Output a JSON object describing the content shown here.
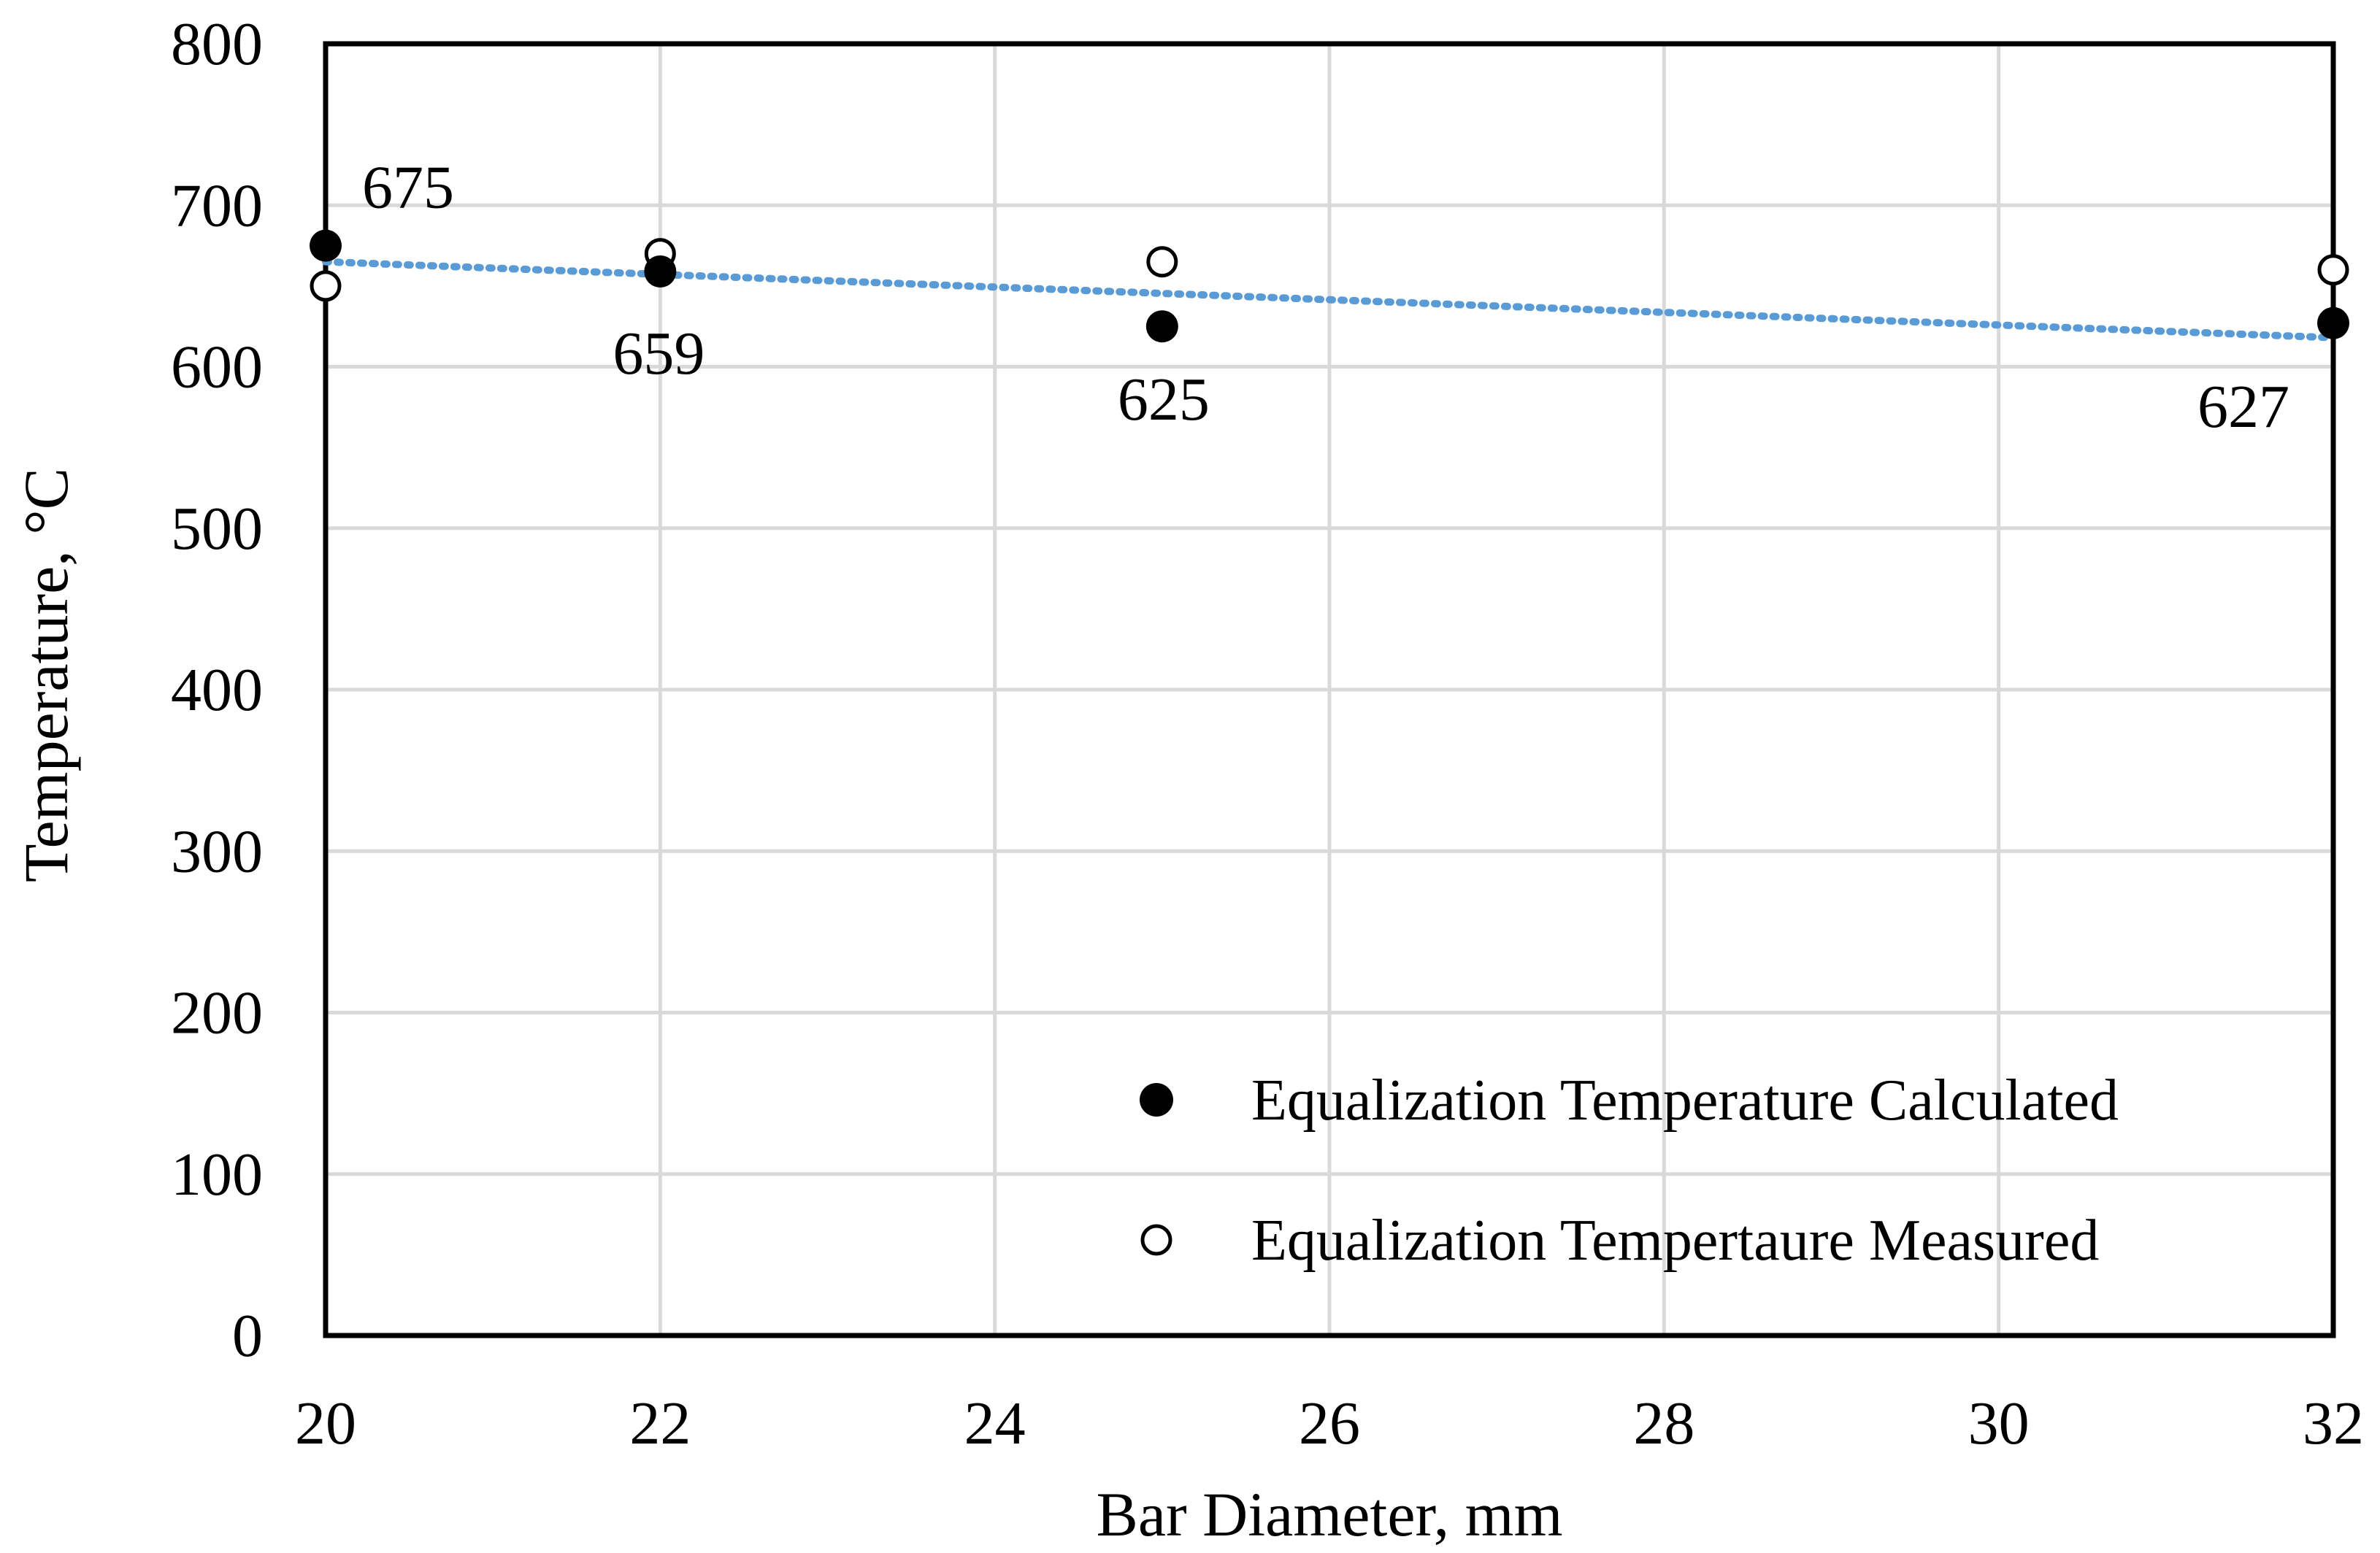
{
  "chart_data": {
    "type": "scatter",
    "title": "",
    "xlabel": "Bar Diameter, mm",
    "ylabel": "Temperature, °C",
    "xlim": [
      20,
      32
    ],
    "ylim": [
      0,
      800
    ],
    "xticks": [
      "20",
      "22",
      "24",
      "26",
      "28",
      "30",
      "32"
    ],
    "yticks": [
      "0",
      "100",
      "200",
      "300",
      "400",
      "500",
      "600",
      "700",
      "800"
    ],
    "grid": true,
    "legend_position": "bottom-right",
    "series": [
      {
        "name": "Equalization Temperature Calculated",
        "marker": "filled-circle",
        "color": "#000000",
        "x": [
          20,
          22,
          25,
          32
        ],
        "y": [
          675,
          659,
          625,
          627
        ],
        "labels": [
          "675",
          "659",
          "625",
          "627"
        ]
      },
      {
        "name": "Equalization Tempertaure Measured",
        "marker": "open-circle",
        "color": "#000000",
        "x": [
          20,
          22,
          25,
          32
        ],
        "y": [
          650,
          670,
          665,
          660
        ]
      }
    ],
    "trendline": {
      "style": "dotted",
      "color": "#5b9bd5",
      "x": [
        20,
        32
      ],
      "y": [
        665,
        618
      ]
    }
  }
}
